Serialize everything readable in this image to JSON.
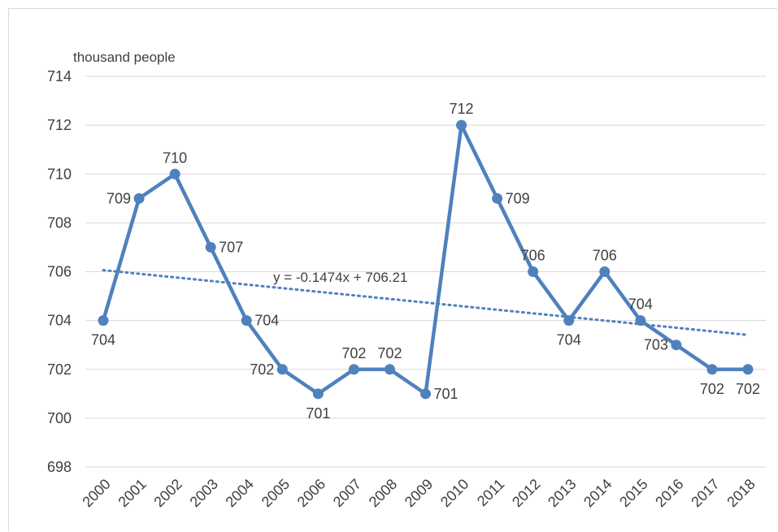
{
  "chart_data": {
    "type": "line",
    "ylabel": "thousand people",
    "ylim": [
      698,
      714
    ],
    "yticks": [
      698,
      700,
      702,
      704,
      706,
      708,
      710,
      712,
      714
    ],
    "grid": true,
    "categories": [
      "2000",
      "2001",
      "2002",
      "2003",
      "2004",
      "2005",
      "2006",
      "2007",
      "2008",
      "2009",
      "2010",
      "2011",
      "2012",
      "2013",
      "2014",
      "2015",
      "2016",
      "2017",
      "2018"
    ],
    "series": [
      {
        "values": [
          704,
          709,
          710,
          707,
          704,
          702,
          701,
          702,
          702,
          701,
          712,
          709,
          706,
          704,
          706,
          704,
          703,
          702,
          702
        ],
        "color": "#4f81bd"
      }
    ],
    "trendline": {
      "type": "linear",
      "equation": "y = -0.1474x + 706.21",
      "slope": -0.1474,
      "intercept": 706.21,
      "color": "#4f81bd",
      "style": "dotted"
    }
  }
}
